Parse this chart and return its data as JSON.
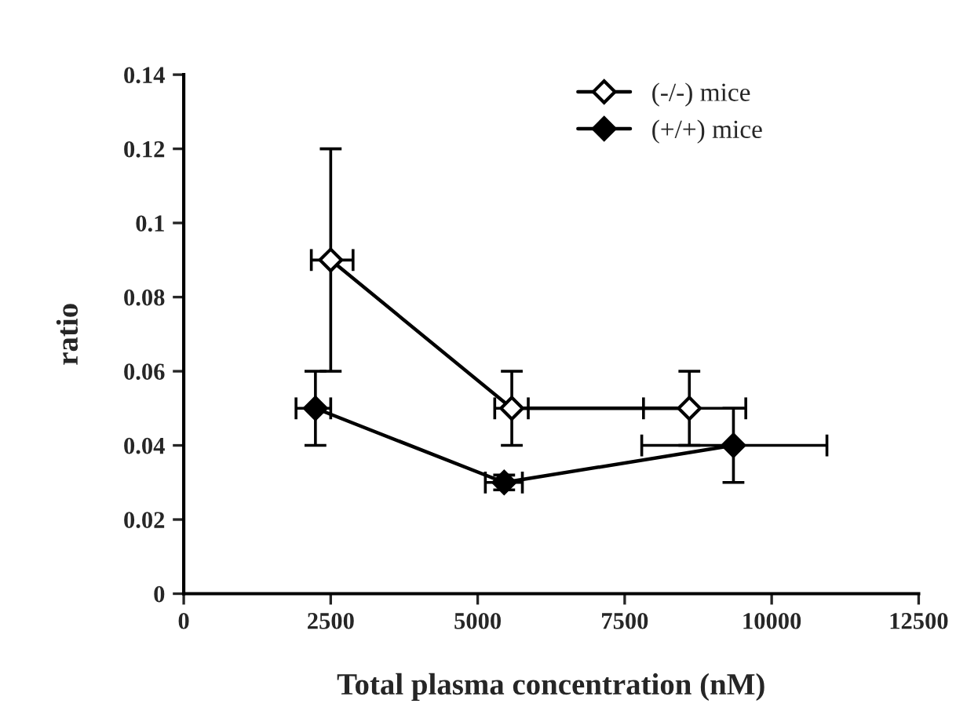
{
  "chart_data": {
    "type": "line",
    "xlabel": "Total plasma concentration (nM)",
    "ylabel": "ratio",
    "xlim": [
      0,
      12500
    ],
    "xticks": [
      0,
      2500,
      5000,
      7500,
      10000,
      12500
    ],
    "ylim": [
      0,
      0.14
    ],
    "yticks": [
      0,
      0.02,
      0.04,
      0.06,
      0.08,
      0.1,
      0.12,
      0.14
    ],
    "grid": false,
    "legend": "top right",
    "marker": "diamond",
    "line_style": "solid",
    "series": [
      {
        "name": "(-/-) mice",
        "color": "#ffffff",
        "x": [
          2500,
          5580,
          8600
        ],
        "values": [
          0.09,
          0.05,
          0.05
        ],
        "errors": [
          0.03,
          0.01,
          0.01
        ],
        "xerrors": [
          [
            2170,
            2880
          ],
          [
            5290,
            5860
          ],
          [
            7820,
            9560
          ]
        ]
      },
      {
        "name": "(+/+) mice",
        "color": "#000000",
        "x": [
          2240,
          5450,
          9350
        ],
        "values": [
          0.05,
          0.03,
          0.04
        ],
        "errors": [
          0.01,
          0.002,
          0.01
        ],
        "xerrors": [
          [
            1910,
            2500
          ],
          [
            5130,
            5760
          ],
          [
            7790,
            10940
          ]
        ]
      }
    ]
  }
}
